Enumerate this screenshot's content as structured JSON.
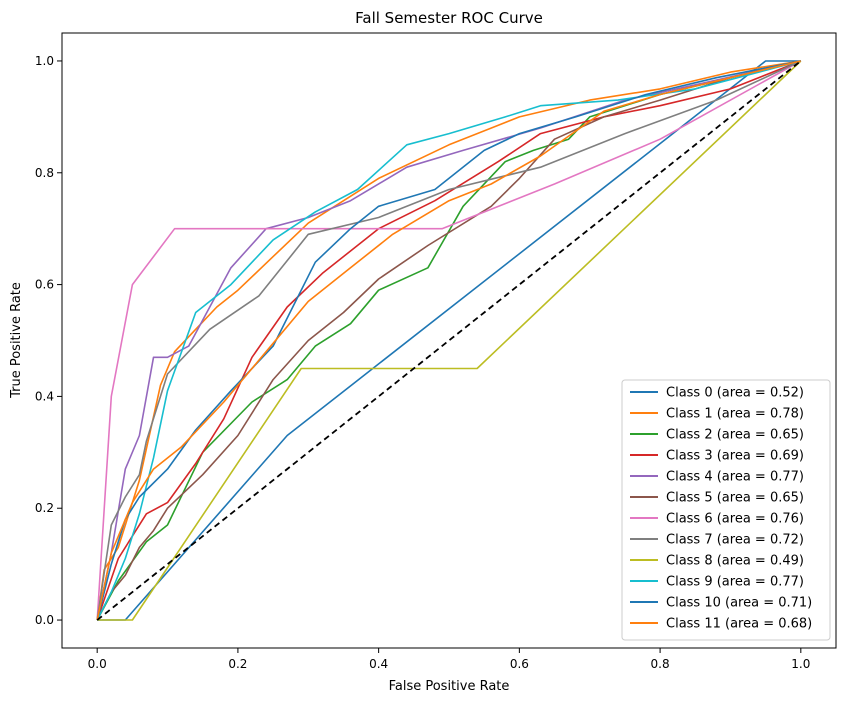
{
  "chart_data": {
    "type": "line",
    "title": "Fall Semester ROC Curve",
    "xlabel": "False Positive Rate",
    "ylabel": "True Positive Rate",
    "xlim": [
      -0.05,
      1.05
    ],
    "ylim": [
      -0.05,
      1.05
    ],
    "xticks": [
      "0.0",
      "0.2",
      "0.4",
      "0.6",
      "0.8",
      "1.0"
    ],
    "yticks": [
      "0.0",
      "0.2",
      "0.4",
      "0.6",
      "0.8",
      "1.0"
    ],
    "grid": false,
    "legend_position": "lower-right",
    "diagonal": {
      "x": [
        0,
        1
      ],
      "y": [
        0,
        1
      ],
      "color": "#000000",
      "style": "dashed"
    },
    "series": [
      {
        "name": "Class 0 (area = 0.52)",
        "color": "#1f77b4",
        "x": [
          0,
          0.04,
          0.27,
          0.95,
          1.0
        ],
        "y": [
          0,
          0,
          0.33,
          1.0,
          1.0
        ]
      },
      {
        "name": "Class 1 (area = 0.78)",
        "color": "#ff7f0e",
        "x": [
          0,
          0.01,
          0.03,
          0.06,
          0.09,
          0.11,
          0.14,
          0.17,
          0.2,
          0.25,
          0.3,
          0.4,
          0.5,
          0.6,
          0.7,
          0.8,
          0.9,
          1.0
        ],
        "y": [
          0,
          0.09,
          0.13,
          0.25,
          0.42,
          0.48,
          0.52,
          0.56,
          0.59,
          0.65,
          0.71,
          0.79,
          0.85,
          0.9,
          0.93,
          0.95,
          0.98,
          1.0
        ]
      },
      {
        "name": "Class 2 (area = 0.65)",
        "color": "#2ca02c",
        "x": [
          0,
          0.03,
          0.07,
          0.1,
          0.15,
          0.22,
          0.27,
          0.31,
          0.36,
          0.4,
          0.47,
          0.52,
          0.58,
          0.62,
          0.67,
          0.7,
          0.8,
          0.9,
          1.0
        ],
        "y": [
          0,
          0.07,
          0.14,
          0.17,
          0.3,
          0.39,
          0.43,
          0.49,
          0.53,
          0.59,
          0.63,
          0.74,
          0.82,
          0.84,
          0.86,
          0.9,
          0.94,
          0.97,
          1.0
        ]
      },
      {
        "name": "Class 3 (area = 0.69)",
        "color": "#d62728",
        "x": [
          0,
          0.03,
          0.07,
          0.1,
          0.14,
          0.18,
          0.22,
          0.27,
          0.32,
          0.4,
          0.48,
          0.57,
          0.63,
          0.72,
          0.8,
          0.9,
          1.0
        ],
        "y": [
          0,
          0.11,
          0.19,
          0.21,
          0.28,
          0.36,
          0.47,
          0.56,
          0.62,
          0.7,
          0.75,
          0.82,
          0.87,
          0.9,
          0.92,
          0.95,
          1.0
        ]
      },
      {
        "name": "Class 4 (area = 0.77)",
        "color": "#9467bd",
        "x": [
          0,
          0.02,
          0.04,
          0.06,
          0.08,
          0.1,
          0.13,
          0.19,
          0.24,
          0.3,
          0.36,
          0.44,
          0.52,
          0.63,
          0.75,
          0.86,
          1.0
        ],
        "y": [
          0,
          0.12,
          0.27,
          0.33,
          0.47,
          0.47,
          0.49,
          0.63,
          0.7,
          0.72,
          0.75,
          0.81,
          0.84,
          0.88,
          0.93,
          0.96,
          1.0
        ]
      },
      {
        "name": "Class 5 (area = 0.65)",
        "color": "#8c564b",
        "x": [
          0,
          0.02,
          0.04,
          0.06,
          0.08,
          0.1,
          0.15,
          0.2,
          0.25,
          0.3,
          0.35,
          0.4,
          0.47,
          0.56,
          0.6,
          0.65,
          0.72,
          0.8,
          0.9,
          1.0
        ],
        "y": [
          0,
          0.05,
          0.08,
          0.13,
          0.16,
          0.2,
          0.26,
          0.33,
          0.43,
          0.5,
          0.55,
          0.61,
          0.67,
          0.74,
          0.79,
          0.86,
          0.9,
          0.93,
          0.97,
          1.0
        ]
      },
      {
        "name": "Class 6 (area = 0.76)",
        "color": "#e377c2",
        "x": [
          0,
          0.02,
          0.05,
          0.11,
          0.49,
          0.65,
          0.8,
          1.0
        ],
        "y": [
          0,
          0.4,
          0.6,
          0.7,
          0.7,
          0.78,
          0.86,
          1.0
        ]
      },
      {
        "name": "Class 7 (area = 0.72)",
        "color": "#7f7f7f",
        "x": [
          0,
          0.02,
          0.04,
          0.06,
          0.07,
          0.1,
          0.16,
          0.23,
          0.3,
          0.4,
          0.5,
          0.63,
          0.75,
          0.88,
          1.0
        ],
        "y": [
          0,
          0.17,
          0.22,
          0.26,
          0.32,
          0.44,
          0.52,
          0.58,
          0.69,
          0.72,
          0.77,
          0.81,
          0.87,
          0.93,
          1.0
        ]
      },
      {
        "name": "Class 8 (area = 0.49)",
        "color": "#bcbd22",
        "x": [
          0,
          0.05,
          0.29,
          0.54,
          1.0
        ],
        "y": [
          0,
          0,
          0.45,
          0.45,
          1.0
        ]
      },
      {
        "name": "Class 9 (area = 0.77)",
        "color": "#17becf",
        "x": [
          0,
          0.02,
          0.04,
          0.06,
          0.08,
          0.1,
          0.14,
          0.19,
          0.25,
          0.31,
          0.37,
          0.44,
          0.5,
          0.58,
          0.63,
          0.74,
          0.85,
          1.0
        ],
        "y": [
          0,
          0.05,
          0.11,
          0.19,
          0.29,
          0.41,
          0.55,
          0.6,
          0.68,
          0.73,
          0.77,
          0.85,
          0.87,
          0.9,
          0.92,
          0.93,
          0.95,
          1.0
        ]
      },
      {
        "name": "Class 10 (area = 0.71)",
        "color": "#1f77b4",
        "x": [
          0,
          0.02,
          0.04,
          0.06,
          0.1,
          0.14,
          0.19,
          0.25,
          0.31,
          0.36,
          0.4,
          0.48,
          0.55,
          0.6,
          0.68,
          0.78,
          0.88,
          1.0
        ],
        "y": [
          0,
          0.1,
          0.18,
          0.22,
          0.27,
          0.34,
          0.41,
          0.49,
          0.64,
          0.7,
          0.74,
          0.77,
          0.84,
          0.87,
          0.9,
          0.94,
          0.97,
          1.0
        ]
      },
      {
        "name": "Class 11 (area = 0.68)",
        "color": "#ff7f0e",
        "x": [
          0,
          0.02,
          0.05,
          0.08,
          0.12,
          0.18,
          0.24,
          0.3,
          0.36,
          0.42,
          0.5,
          0.56,
          0.63,
          0.72,
          0.8,
          0.9,
          1.0
        ],
        "y": [
          0,
          0.12,
          0.21,
          0.27,
          0.31,
          0.39,
          0.48,
          0.57,
          0.63,
          0.69,
          0.75,
          0.78,
          0.83,
          0.91,
          0.94,
          0.97,
          1.0
        ]
      }
    ]
  }
}
